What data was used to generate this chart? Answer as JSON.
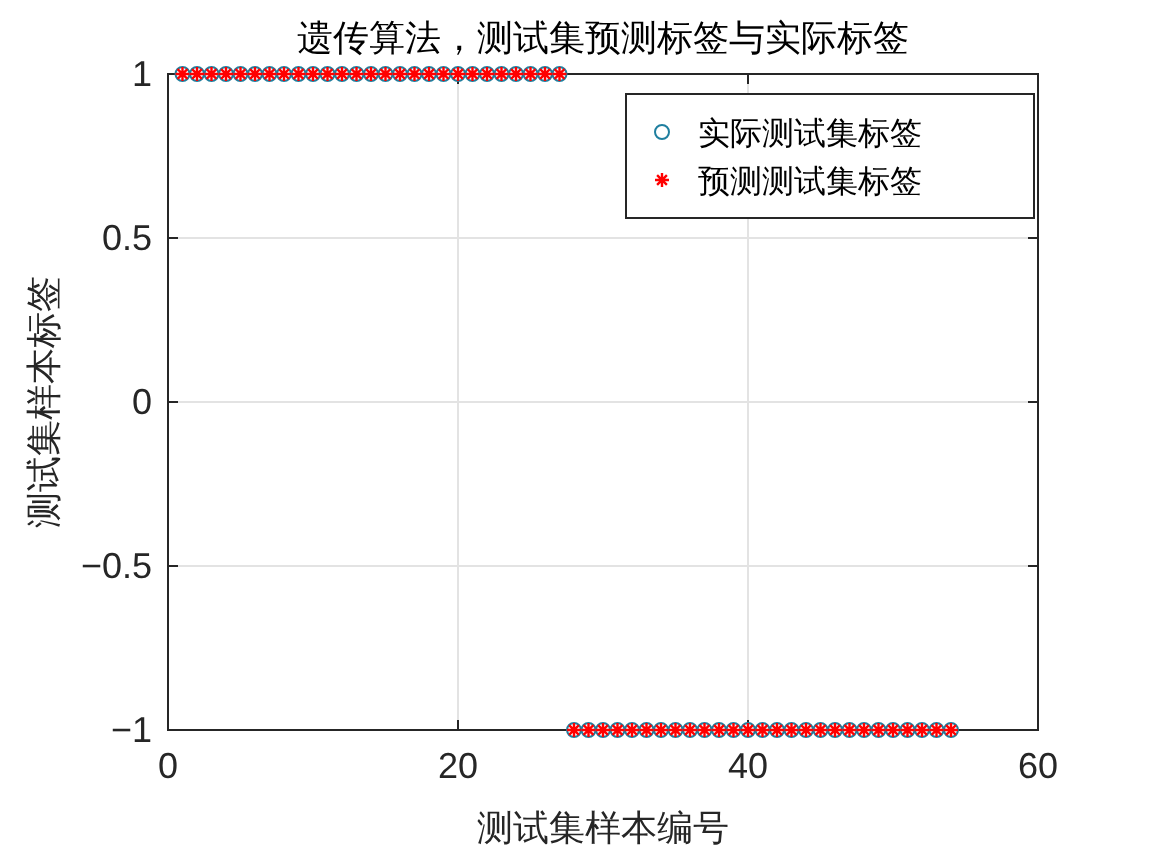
{
  "chart_data": {
    "type": "scatter",
    "title": "遗传算法，测试集预测标签与实际标签",
    "xlabel": "测试集样本编号",
    "ylabel": "测试集样本标签",
    "x": [
      1,
      2,
      3,
      4,
      5,
      6,
      7,
      8,
      9,
      10,
      11,
      12,
      13,
      14,
      15,
      16,
      17,
      18,
      19,
      20,
      21,
      22,
      23,
      24,
      25,
      26,
      27,
      28,
      29,
      30,
      31,
      32,
      33,
      34,
      35,
      36,
      37,
      38,
      39,
      40,
      41,
      42,
      43,
      44,
      45,
      46,
      47,
      48,
      49,
      50,
      51,
      52,
      53,
      54
    ],
    "series": [
      {
        "name": "实际测试集标签",
        "color": "#1f7f9f",
        "marker": "circle",
        "values": [
          1,
          1,
          1,
          1,
          1,
          1,
          1,
          1,
          1,
          1,
          1,
          1,
          1,
          1,
          1,
          1,
          1,
          1,
          1,
          1,
          1,
          1,
          1,
          1,
          1,
          1,
          1,
          -1,
          -1,
          -1,
          -1,
          -1,
          -1,
          -1,
          -1,
          -1,
          -1,
          -1,
          -1,
          -1,
          -1,
          -1,
          -1,
          -1,
          -1,
          -1,
          -1,
          -1,
          -1,
          -1,
          -1,
          -1,
          -1,
          -1
        ]
      },
      {
        "name": "预测测试集标签",
        "color": "#ff0000",
        "marker": "cross",
        "values": [
          1,
          1,
          1,
          1,
          1,
          1,
          1,
          1,
          1,
          1,
          1,
          1,
          1,
          1,
          1,
          1,
          1,
          1,
          1,
          1,
          1,
          1,
          1,
          1,
          1,
          1,
          1,
          -1,
          -1,
          -1,
          -1,
          -1,
          -1,
          -1,
          -1,
          -1,
          -1,
          -1,
          -1,
          -1,
          -1,
          -1,
          -1,
          -1,
          -1,
          -1,
          -1,
          -1,
          -1,
          -1,
          -1,
          -1,
          -1,
          -1
        ]
      }
    ],
    "xlim": [
      0,
      60
    ],
    "xticks": [
      0,
      20,
      40,
      60
    ],
    "ylim": [
      -1,
      1
    ],
    "yticks": [
      -1,
      -0.5,
      0,
      0.5,
      1
    ],
    "grid": true,
    "legend": "top right"
  }
}
